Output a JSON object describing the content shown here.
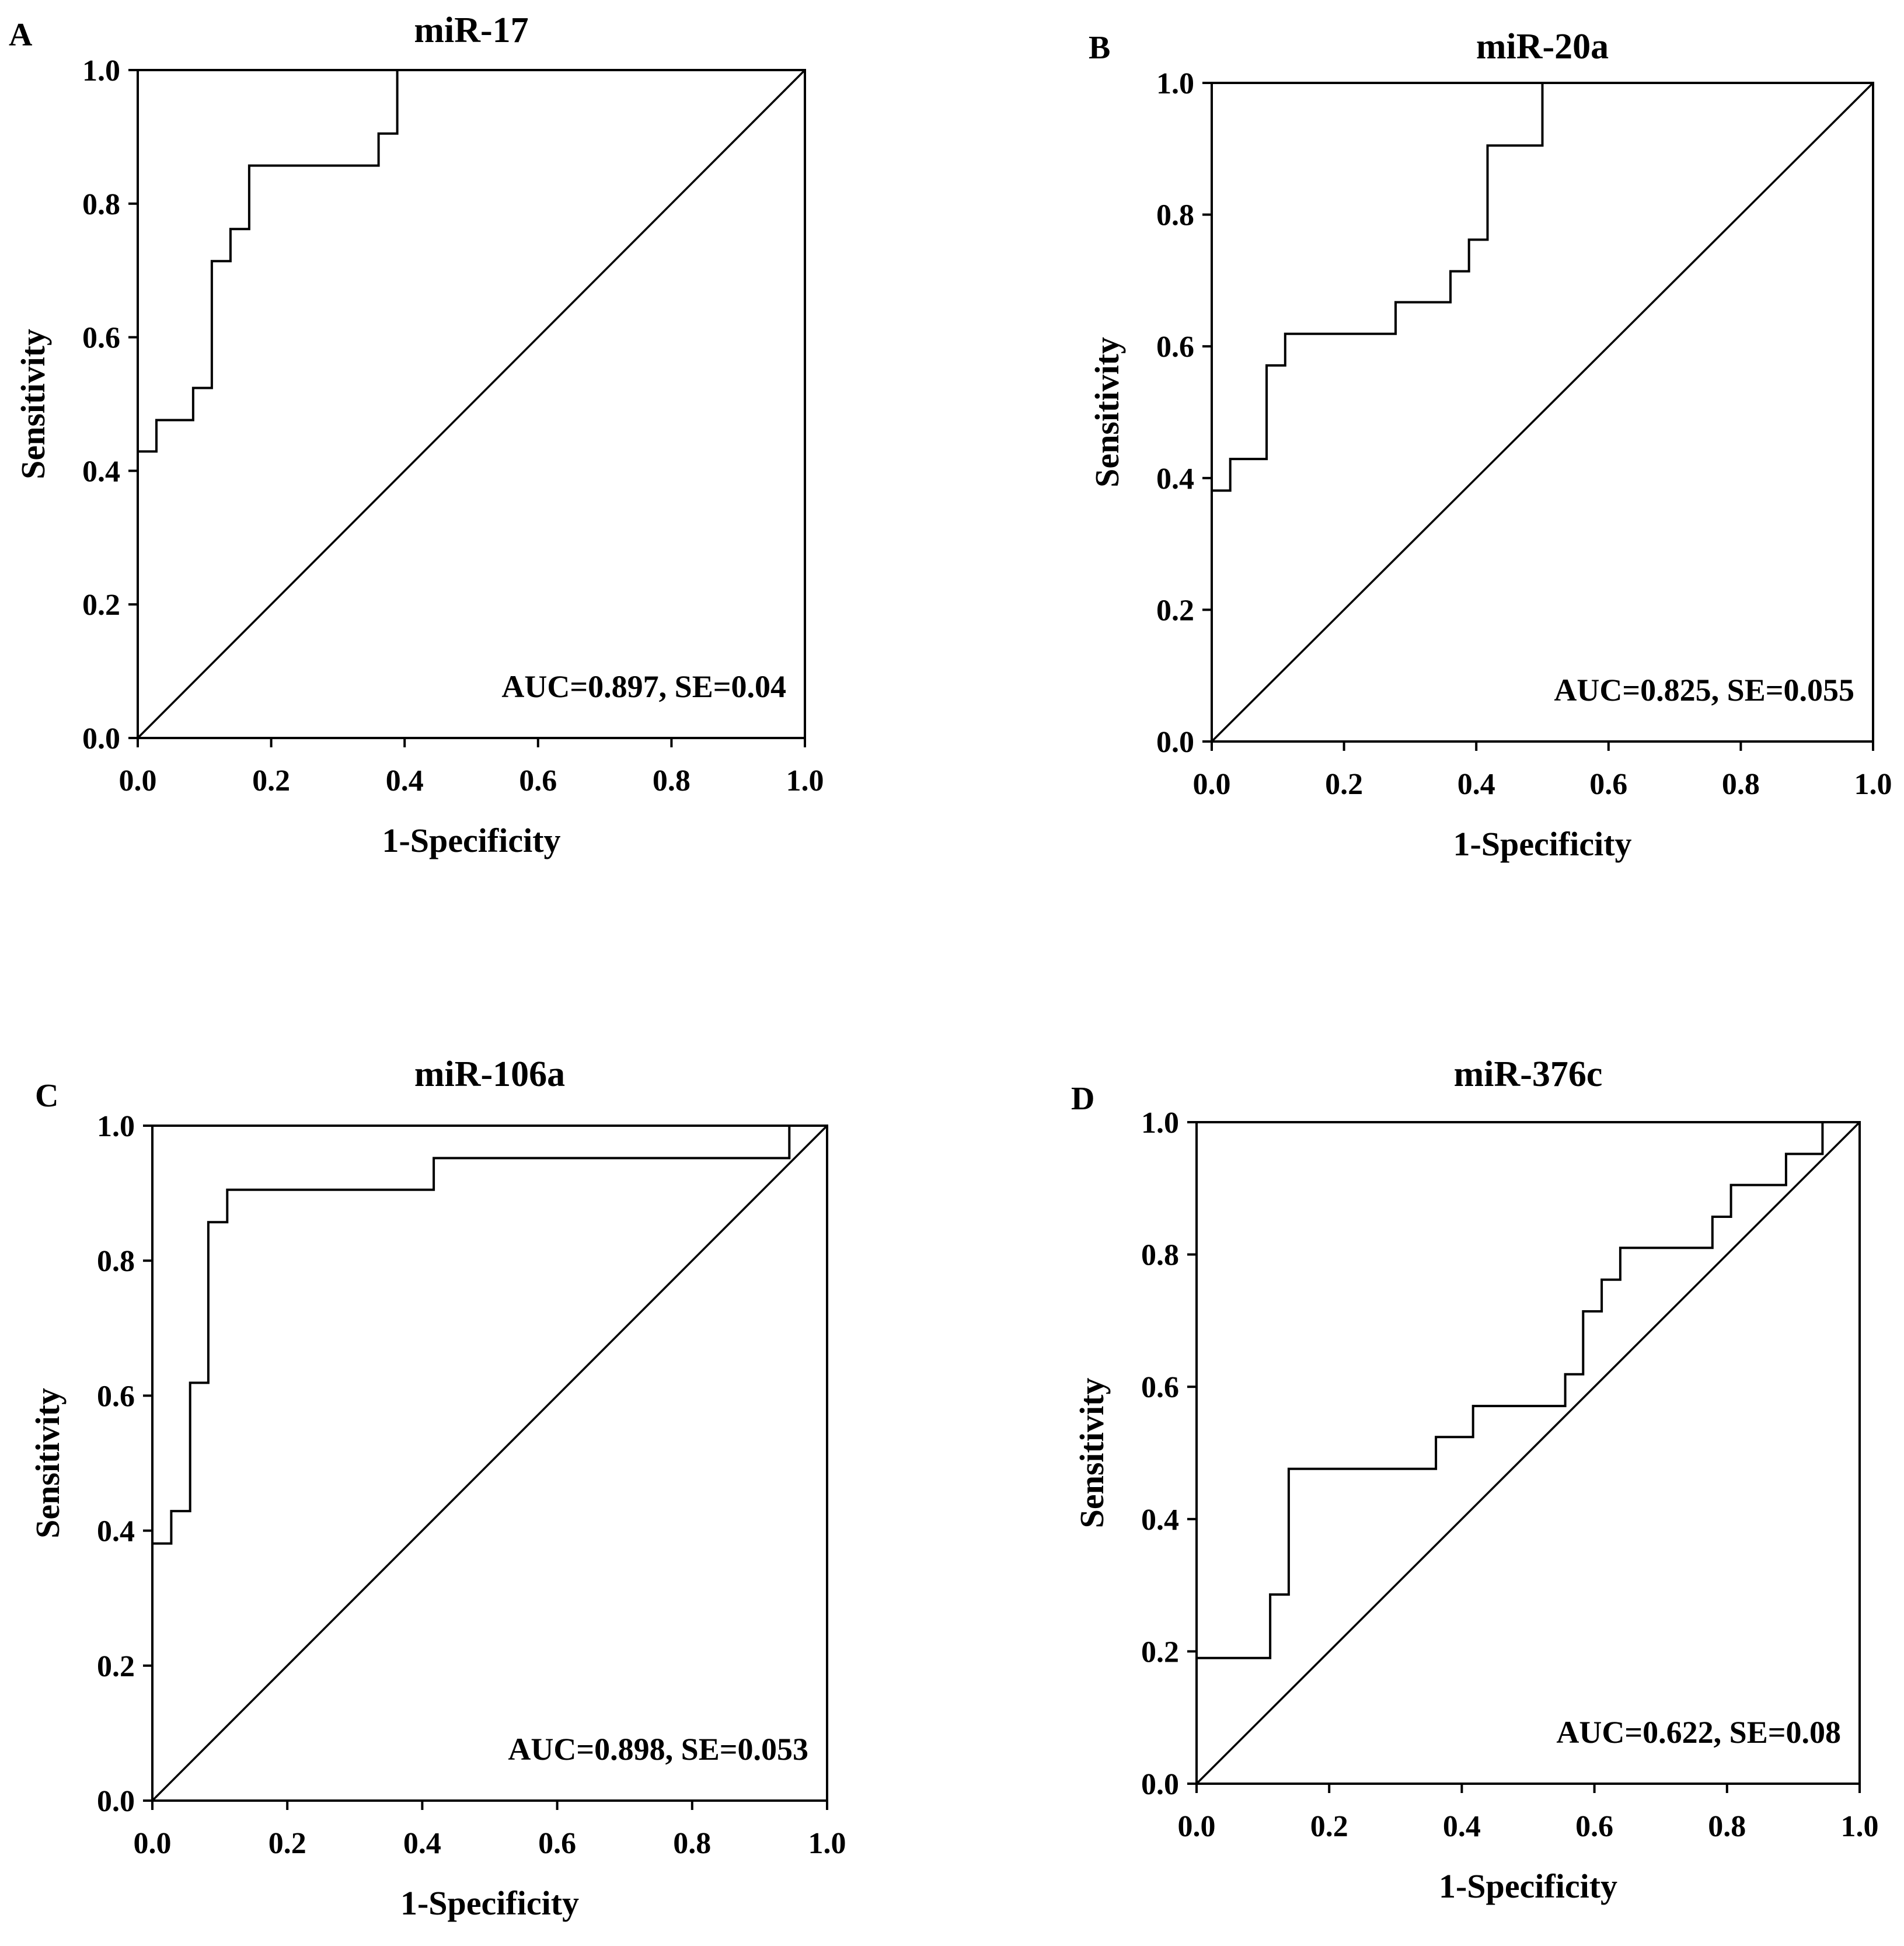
{
  "chart_data": [
    {
      "type": "line",
      "panel": "A",
      "title": "miR-17",
      "xlabel": "1-Specificity",
      "ylabel": "Sensitivity",
      "xlim": [
        0,
        1
      ],
      "ylim": [
        0,
        1
      ],
      "xticks": [
        "0.0",
        "0.2",
        "0.4",
        "0.6",
        "0.8",
        "1.0"
      ],
      "yticks": [
        "0.0",
        "0.2",
        "0.4",
        "0.6",
        "0.8",
        "1.0"
      ],
      "annotation": "AUC=0.897, SE=0.04",
      "series": [
        {
          "name": "ROC curve",
          "x": [
            0,
            0,
            0.028,
            0.028,
            0.083,
            0.083,
            0.111,
            0.111,
            0.139,
            0.139,
            0.167,
            0.167,
            0.361,
            0.361,
            0.389,
            0.389,
            1
          ],
          "y": [
            0,
            0.429,
            0.429,
            0.476,
            0.476,
            0.524,
            0.524,
            0.714,
            0.714,
            0.762,
            0.762,
            0.857,
            0.857,
            0.905,
            0.905,
            1,
            1
          ]
        },
        {
          "name": "Reference line",
          "x": [
            0,
            1
          ],
          "y": [
            0,
            1
          ]
        }
      ]
    },
    {
      "type": "line",
      "panel": "B",
      "title": "miR-20a",
      "xlabel": "1-Specificity",
      "ylabel": "Sensitivity",
      "xlim": [
        0,
        1
      ],
      "ylim": [
        0,
        1
      ],
      "xticks": [
        "0.0",
        "0.2",
        "0.4",
        "0.6",
        "0.8",
        "1.0"
      ],
      "yticks": [
        "0.0",
        "0.2",
        "0.4",
        "0.6",
        "0.8",
        "1.0"
      ],
      "annotation": "AUC=0.825, SE=0.055",
      "series": [
        {
          "name": "ROC curve",
          "x": [
            0,
            0,
            0.028,
            0.028,
            0.083,
            0.083,
            0.111,
            0.111,
            0.278,
            0.278,
            0.361,
            0.361,
            0.389,
            0.389,
            0.417,
            0.417,
            0.5,
            0.5,
            1
          ],
          "y": [
            0,
            0.381,
            0.381,
            0.429,
            0.429,
            0.571,
            0.571,
            0.619,
            0.619,
            0.667,
            0.667,
            0.714,
            0.714,
            0.762,
            0.762,
            0.905,
            0.905,
            1,
            1
          ]
        },
        {
          "name": "Reference line",
          "x": [
            0,
            1
          ],
          "y": [
            0,
            1
          ]
        }
      ]
    },
    {
      "type": "line",
      "panel": "C",
      "title": "miR-106a",
      "xlabel": "1-Specificity",
      "ylabel": "Sensitivity",
      "xlim": [
        0,
        1
      ],
      "ylim": [
        0,
        1
      ],
      "xticks": [
        "0.0",
        "0.2",
        "0.4",
        "0.6",
        "0.8",
        "1.0"
      ],
      "yticks": [
        "0.0",
        "0.2",
        "0.4",
        "0.6",
        "0.8",
        "1.0"
      ],
      "annotation": "AUC=0.898, SE=0.053",
      "series": [
        {
          "name": "ROC curve",
          "x": [
            0,
            0,
            0.028,
            0.028,
            0.056,
            0.056,
            0.083,
            0.083,
            0.111,
            0.111,
            0.417,
            0.417,
            0.944,
            0.944,
            1
          ],
          "y": [
            0,
            0.381,
            0.381,
            0.429,
            0.429,
            0.619,
            0.619,
            0.857,
            0.857,
            0.905,
            0.905,
            0.952,
            0.952,
            1,
            1
          ]
        },
        {
          "name": "Reference line",
          "x": [
            0,
            1
          ],
          "y": [
            0,
            1
          ]
        }
      ]
    },
    {
      "type": "line",
      "panel": "D",
      "title": "miR-376c",
      "xlabel": "1-Specificity",
      "ylabel": "Sensitivity",
      "xlim": [
        0,
        1
      ],
      "ylim": [
        0,
        1
      ],
      "xticks": [
        "0.0",
        "0.2",
        "0.4",
        "0.6",
        "0.8",
        "1.0"
      ],
      "yticks": [
        "0.0",
        "0.2",
        "0.4",
        "0.6",
        "0.8",
        "1.0"
      ],
      "annotation": "AUC=0.622, SE=0.08",
      "series": [
        {
          "name": "ROC curve",
          "x": [
            0,
            0,
            0.111,
            0.111,
            0.139,
            0.139,
            0.361,
            0.361,
            0.417,
            0.417,
            0.556,
            0.556,
            0.583,
            0.583,
            0.611,
            0.611,
            0.639,
            0.639,
            0.778,
            0.778,
            0.806,
            0.806,
            0.889,
            0.889,
            0.944,
            0.944,
            1
          ],
          "y": [
            0,
            0.19,
            0.19,
            0.286,
            0.286,
            0.476,
            0.476,
            0.524,
            0.524,
            0.571,
            0.571,
            0.619,
            0.619,
            0.714,
            0.714,
            0.762,
            0.762,
            0.81,
            0.81,
            0.857,
            0.857,
            0.905,
            0.905,
            0.952,
            0.952,
            1,
            1
          ]
        },
        {
          "name": "Reference line",
          "x": [
            0,
            1
          ],
          "y": [
            0,
            1
          ]
        }
      ]
    }
  ]
}
